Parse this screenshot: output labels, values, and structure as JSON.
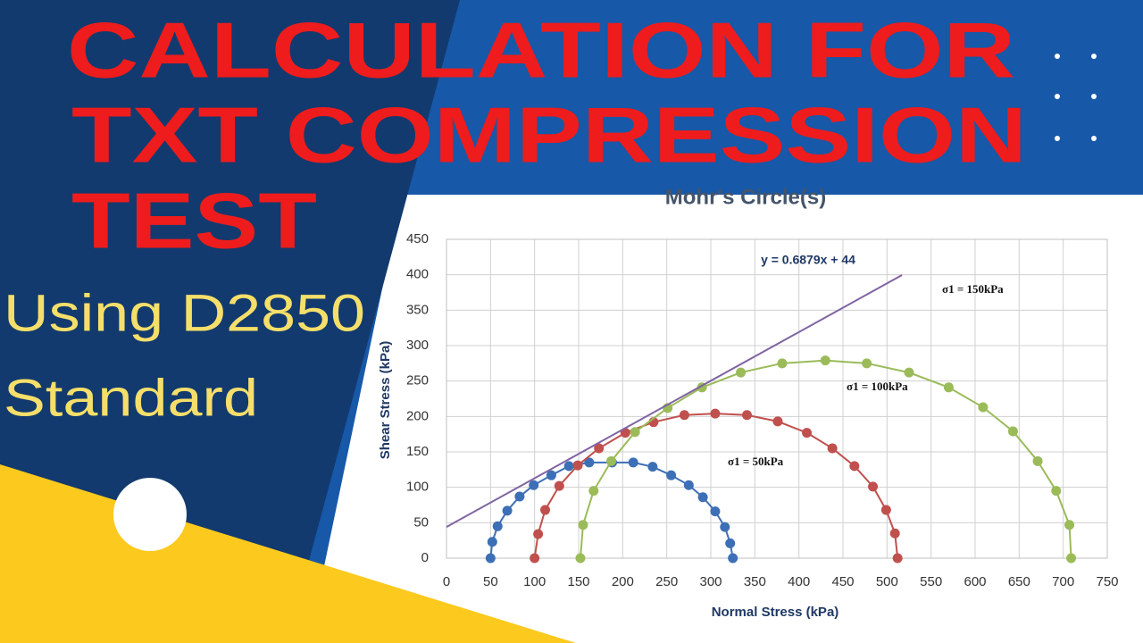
{
  "thumbnail": {
    "title_lines": [
      "CALCULATION FOR",
      "TXT COMPRESSION",
      "TEST"
    ],
    "subtitle_lines": [
      "Using D2850",
      "Standard"
    ]
  },
  "chart_data": {
    "type": "scatter",
    "title": "Mohr's Circle(s)",
    "x_label": "Normal Stress (kPa)",
    "y_label": "Shear Stress (kPa)",
    "xlim": [
      0,
      750
    ],
    "ylim": [
      0,
      450
    ],
    "xticks": [
      0,
      50,
      100,
      150,
      200,
      250,
      300,
      350,
      400,
      450,
      500,
      550,
      600,
      650,
      700,
      750
    ],
    "yticks": [
      0,
      50,
      100,
      150,
      200,
      250,
      300,
      350,
      400,
      450
    ],
    "grid": true,
    "series": [
      {
        "name": "σ1 = 50kPa",
        "color": "#3d6fb6",
        "mode": "markers+line",
        "x": [
          50,
          52,
          58,
          69,
          83,
          99,
          119,
          139,
          162,
          188,
          212,
          234,
          255,
          275,
          291,
          305,
          316,
          322,
          325
        ],
        "values": [
          0,
          23,
          45,
          67,
          87,
          103,
          117,
          130,
          135,
          135,
          135,
          129,
          117,
          103,
          86,
          66,
          44,
          21,
          0
        ]
      },
      {
        "name": "σ1 = 100kPa",
        "color": "#c0504d",
        "mode": "markers+line",
        "x": [
          100,
          104,
          112,
          128,
          149,
          173,
          203,
          235,
          270,
          305,
          341,
          376,
          409,
          438,
          463,
          484,
          499,
          509,
          512
        ],
        "values": [
          0,
          34,
          68,
          102,
          131,
          155,
          177,
          192,
          202,
          204,
          202,
          193,
          177,
          155,
          130,
          101,
          68,
          35,
          0
        ]
      },
      {
        "name": "σ1 = 150kPa",
        "color": "#9bbb59",
        "mode": "markers+line",
        "x": [
          152,
          155,
          167,
          187,
          214,
          251,
          290,
          334,
          381,
          430,
          477,
          525,
          570,
          609,
          643,
          671,
          692,
          707,
          709
        ],
        "values": [
          0,
          47,
          95,
          137,
          178,
          212,
          241,
          262,
          275,
          279,
          275,
          262,
          241,
          213,
          179,
          137,
          95,
          47,
          0
        ]
      },
      {
        "label": "y = 0.6879x + 44",
        "color": "#8064a2",
        "mode": "line",
        "x": [
          0,
          517
        ],
        "values": [
          44,
          399.6
        ]
      }
    ]
  }
}
